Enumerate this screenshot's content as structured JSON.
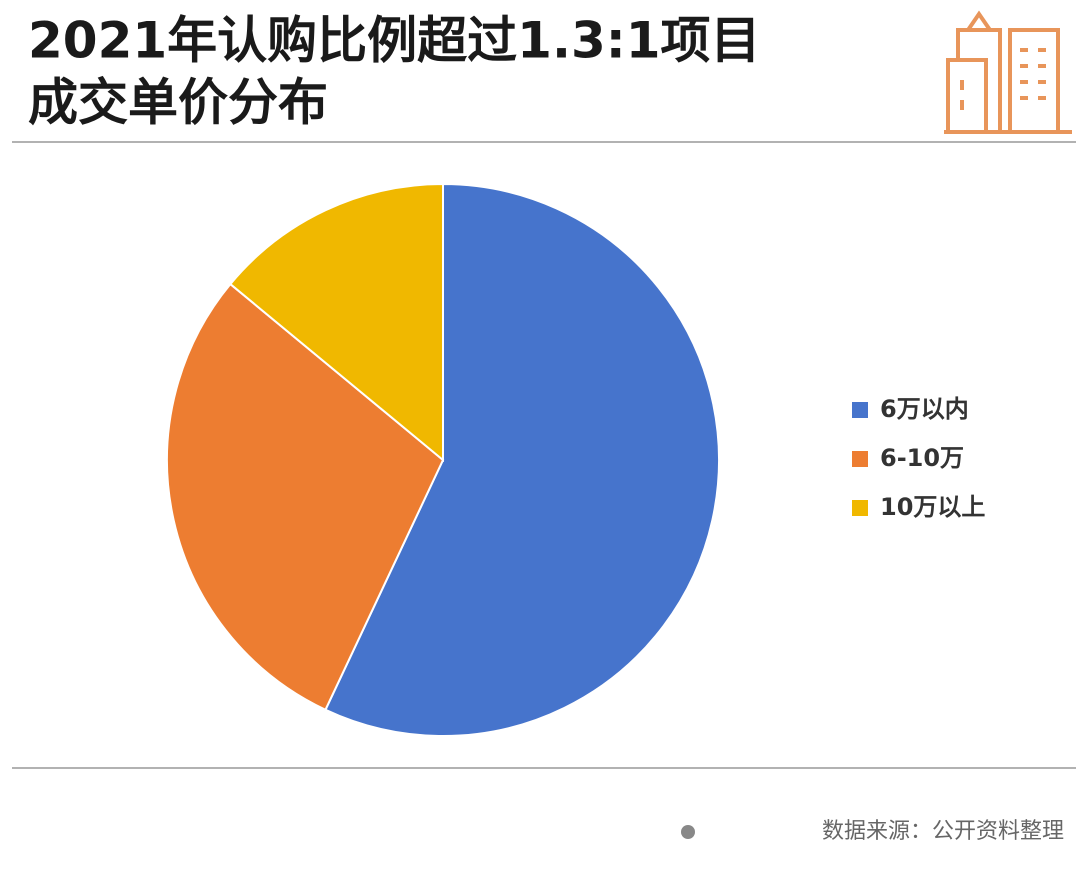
{
  "chart_data": {
    "type": "pie",
    "title": [
      "2021年认购比例超过1.3:1项目",
      "成交单价分布"
    ],
    "categories": [
      "6万以内",
      "6-10万",
      "10万以上"
    ],
    "values": [
      57,
      29,
      14
    ],
    "colors": [
      "#4674cc",
      "#ed7d31",
      "#f0b800"
    ],
    "source": "数据来源：公开资料整理"
  }
}
